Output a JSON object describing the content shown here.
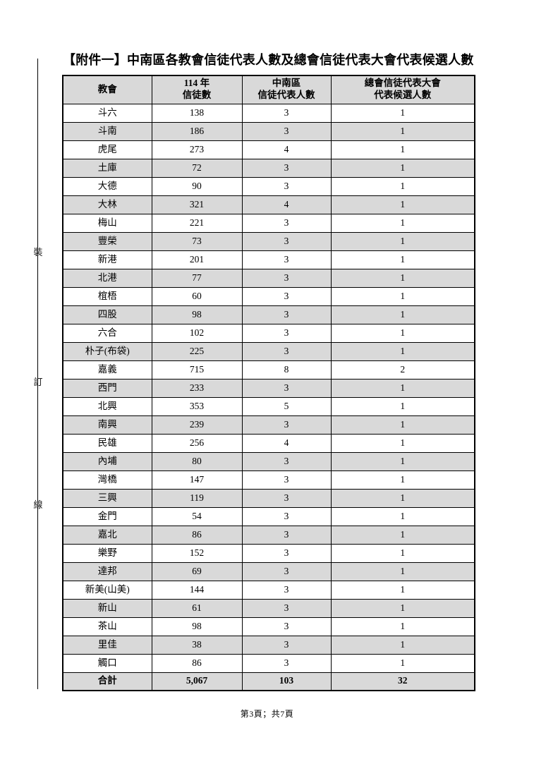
{
  "page": {
    "title": "【附件一】中南區各教會信徒代表人數及總會信徒代表大會代表候選人數",
    "footer": "第3頁；共7頁",
    "binding_marks": [
      "裝",
      "訂",
      "線"
    ]
  },
  "table": {
    "headers": [
      {
        "lines": [
          "教會"
        ]
      },
      {
        "lines": [
          "114 年",
          "信徒數"
        ]
      },
      {
        "lines": [
          "中南區",
          "信徒代表人數"
        ]
      },
      {
        "lines": [
          "總會信徒代表大會",
          "代表候選人數"
        ]
      }
    ],
    "rows": [
      [
        "斗六",
        "138",
        "3",
        "1"
      ],
      [
        "斗南",
        "186",
        "3",
        "1"
      ],
      [
        "虎尾",
        "273",
        "4",
        "1"
      ],
      [
        "土庫",
        "72",
        "3",
        "1"
      ],
      [
        "大德",
        "90",
        "3",
        "1"
      ],
      [
        "大林",
        "321",
        "4",
        "1"
      ],
      [
        "梅山",
        "221",
        "3",
        "1"
      ],
      [
        "豐榮",
        "73",
        "3",
        "1"
      ],
      [
        "新港",
        "201",
        "3",
        "1"
      ],
      [
        "北港",
        "77",
        "3",
        "1"
      ],
      [
        "椬梧",
        "60",
        "3",
        "1"
      ],
      [
        "四股",
        "98",
        "3",
        "1"
      ],
      [
        "六合",
        "102",
        "3",
        "1"
      ],
      [
        "朴子(布袋)",
        "225",
        "3",
        "1"
      ],
      [
        "嘉義",
        "715",
        "8",
        "2"
      ],
      [
        "西門",
        "233",
        "3",
        "1"
      ],
      [
        "北興",
        "353",
        "5",
        "1"
      ],
      [
        "南興",
        "239",
        "3",
        "1"
      ],
      [
        "民雄",
        "256",
        "4",
        "1"
      ],
      [
        "內埔",
        "80",
        "3",
        "1"
      ],
      [
        "灣橋",
        "147",
        "3",
        "1"
      ],
      [
        "三興",
        "119",
        "3",
        "1"
      ],
      [
        "金門",
        "54",
        "3",
        "1"
      ],
      [
        "嘉北",
        "86",
        "3",
        "1"
      ],
      [
        "樂野",
        "152",
        "3",
        "1"
      ],
      [
        "達邦",
        "69",
        "3",
        "1"
      ],
      [
        "新美(山美)",
        "144",
        "3",
        "1"
      ],
      [
        "新山",
        "61",
        "3",
        "1"
      ],
      [
        "茶山",
        "98",
        "3",
        "1"
      ],
      [
        "里佳",
        "38",
        "3",
        "1"
      ],
      [
        "觸口",
        "86",
        "3",
        "1"
      ]
    ],
    "total_row": [
      "合計",
      "5,067",
      "103",
      "32"
    ],
    "colors": {
      "row_alt": "#d9d9d9",
      "border": "#000000"
    }
  }
}
